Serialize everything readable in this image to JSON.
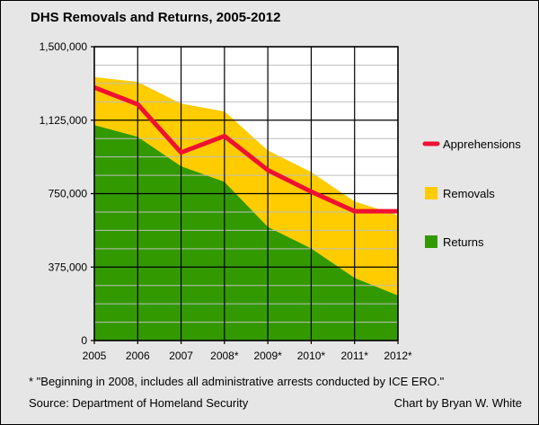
{
  "chart_data": {
    "type": "area",
    "title": "DHS Removals and Returns, 2005-2012",
    "xlabel": "",
    "ylabel": "",
    "categories": [
      "2005",
      "2006",
      "2007",
      "2008*",
      "2009*",
      "2010*",
      "2011*",
      "2012*"
    ],
    "y_ticks": [
      "0",
      "375,000",
      "750,000",
      "1,125,000",
      "1,500,000"
    ],
    "ylim": [
      0,
      1500000
    ],
    "grid": true,
    "legend_position": "right",
    "series": [
      {
        "name": "Returns",
        "kind": "area",
        "color": "#339900",
        "values": [
          1100000,
          1040000,
          890000,
          810000,
          580000,
          470000,
          320000,
          230000
        ]
      },
      {
        "name": "Removals",
        "kind": "area",
        "color": "#ffcc00",
        "values": [
          245000,
          280000,
          320000,
          360000,
          390000,
          390000,
          390000,
          410000
        ]
      },
      {
        "name": "Apprehensions",
        "kind": "line",
        "color": "#ee1133",
        "values": [
          1292000,
          1206000,
          960000,
          1044000,
          870000,
          760000,
          660000,
          660000
        ]
      }
    ],
    "legend": [
      "Apprehensions",
      "Removals",
      "Returns"
    ]
  },
  "footnote": "* \"Beginning in 2008, includes all administrative arrests conducted by ICE ERO.\"",
  "source": "Source: Department of Homeland Security",
  "credit": "Chart by Bryan W. White"
}
